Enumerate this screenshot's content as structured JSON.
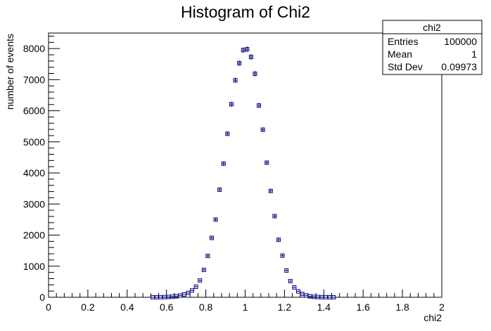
{
  "chart_data": {
    "type": "scatter",
    "title": "Histogram of Chi2",
    "xlabel": "chi2",
    "ylabel": "number of events",
    "xlim": [
      0,
      2
    ],
    "ylim": [
      0,
      8500
    ],
    "xticks": [
      "0",
      "0.2",
      "0.4",
      "0.6",
      "0.8",
      "1",
      "1.2",
      "1.4",
      "1.6",
      "1.8",
      "2"
    ],
    "yticks": [
      "0",
      "1000",
      "2000",
      "3000",
      "4000",
      "5000",
      "6000",
      "7000",
      "8000"
    ],
    "grid": false,
    "marker_color": "#00007f",
    "series": [
      {
        "bin_width": 0.02,
        "x": [
          0.53,
          0.55,
          0.57,
          0.59,
          0.61,
          0.63,
          0.65,
          0.67,
          0.69,
          0.71,
          0.73,
          0.75,
          0.77,
          0.79,
          0.81,
          0.83,
          0.85,
          0.87,
          0.89,
          0.91,
          0.93,
          0.95,
          0.97,
          0.99,
          1.01,
          1.03,
          1.05,
          1.07,
          1.09,
          1.11,
          1.13,
          1.15,
          1.17,
          1.19,
          1.21,
          1.23,
          1.25,
          1.27,
          1.29,
          1.31,
          1.33,
          1.35,
          1.37,
          1.39,
          1.41,
          1.43,
          1.45,
          1.47
        ],
        "y": [
          1,
          2,
          3,
          5,
          10,
          20,
          30,
          55,
          90,
          140,
          220,
          340,
          540,
          880,
          1330,
          1910,
          2500,
          3460,
          4300,
          5260,
          6210,
          6980,
          7530,
          7950,
          7980,
          7730,
          7190,
          6170,
          5390,
          4330,
          3420,
          2610,
          1850,
          1340,
          860,
          520,
          320,
          190,
          110,
          60,
          30,
          15,
          8,
          4,
          2,
          1,
          1,
          0
        ]
      }
    ],
    "stats_box": {
      "name": "chi2",
      "entries_label": "Entries",
      "entries_value": "100000",
      "mean_label": "Mean",
      "mean_value": "1",
      "stddev_label": "Std Dev",
      "stddev_value": "0.09973"
    }
  }
}
